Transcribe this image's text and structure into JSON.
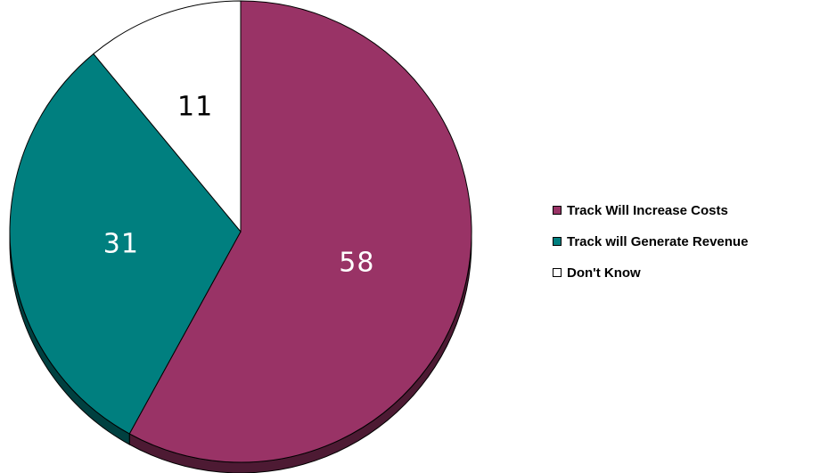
{
  "chart_data": {
    "type": "pie",
    "categories": [
      "Track Will Increase Costs",
      "Track will Generate Revenue",
      "Don't Know"
    ],
    "values": [
      58,
      31,
      11
    ],
    "data_labels": [
      "58",
      "31",
      "11"
    ],
    "colors": [
      "#993366",
      "#007F7F",
      "#FFFFFF"
    ],
    "side_colors": [
      "#4d1a33",
      "#004040",
      "#8a8a8a"
    ],
    "label_colors": [
      "#FFFFFF",
      "#FFFFFF",
      "#000000"
    ],
    "style": "3d-tilted",
    "start": "12 o'clock, clockwise",
    "legend": "right"
  }
}
